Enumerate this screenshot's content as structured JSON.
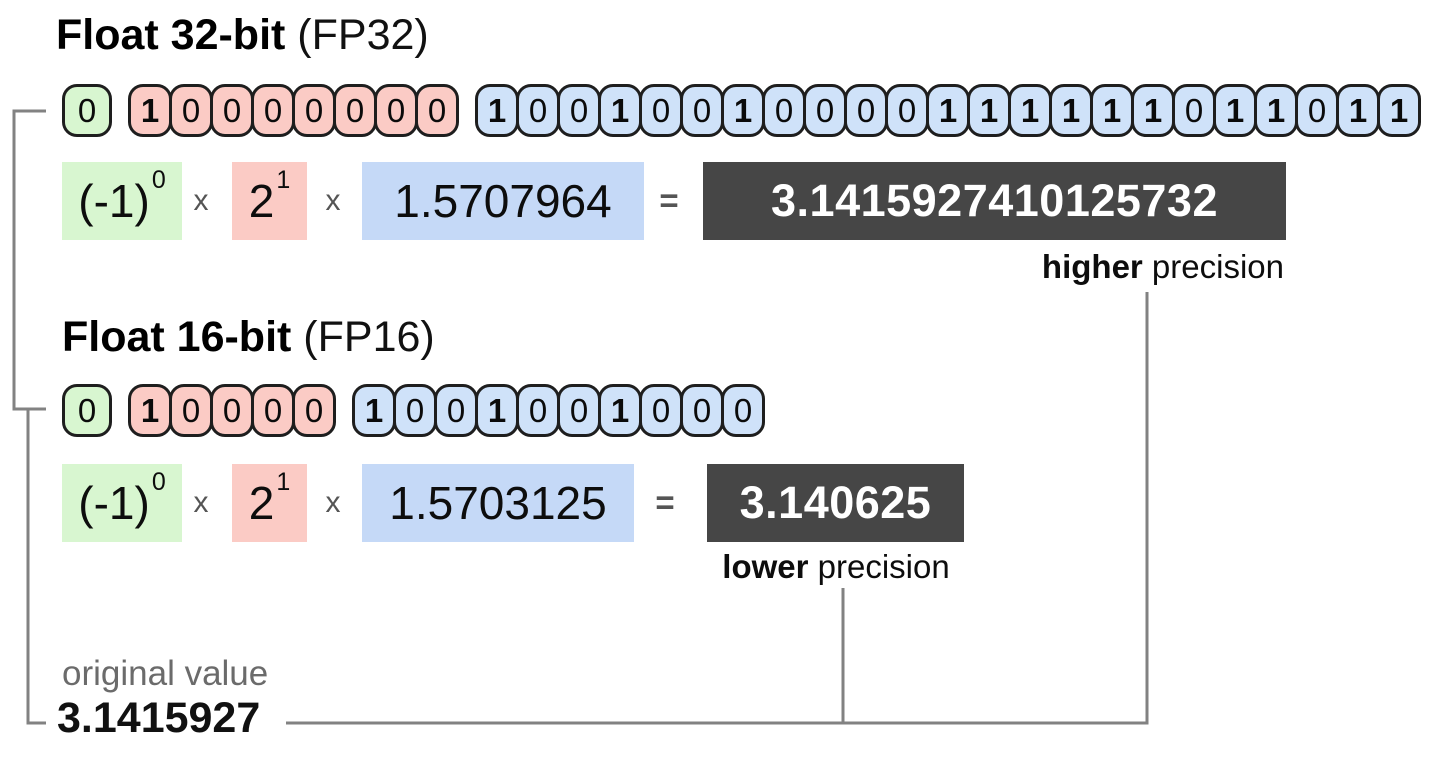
{
  "colors": {
    "sign_green": "#d8f6d0",
    "exponent_pink": "#fbcbc5",
    "mantissa_cell_blue": "#cfe2f9",
    "mantissa_box_blue": "#c5d9f7",
    "result_dark": "#464646",
    "connector_gray": "#828282",
    "cell_border": "#1e1e1e"
  },
  "fp32": {
    "title": "Float 32-bit",
    "title_suffix": "(FP32)",
    "sign_bits": "0",
    "exponent_bits": "10000000",
    "mantissa_bits": "10010010000111111011011",
    "formula": {
      "sign_base": "(-1)",
      "sign_exponent": "0",
      "multiply1": "x",
      "base": "2",
      "exponent": "1",
      "multiply2": "x",
      "mantissa_value": "1.5707964",
      "equals": "=",
      "result": "3.1415927410125732"
    },
    "precision_word": "higher",
    "precision_rest": " precision"
  },
  "fp16": {
    "title": "Float 16-bit",
    "title_suffix": "(FP16)",
    "sign_bits": "0",
    "exponent_bits": "10000",
    "mantissa_bits": "1001001000",
    "formula": {
      "sign_base": "(-1)",
      "sign_exponent": "0",
      "multiply1": "x",
      "base": "2",
      "exponent": "1",
      "multiply2": "x",
      "mantissa_value": "1.5703125",
      "equals": "=",
      "result": "3.140625"
    },
    "precision_word": "lower",
    "precision_rest": " precision"
  },
  "footer": {
    "original_value_label": "original value",
    "original_value": "3.1415927"
  }
}
